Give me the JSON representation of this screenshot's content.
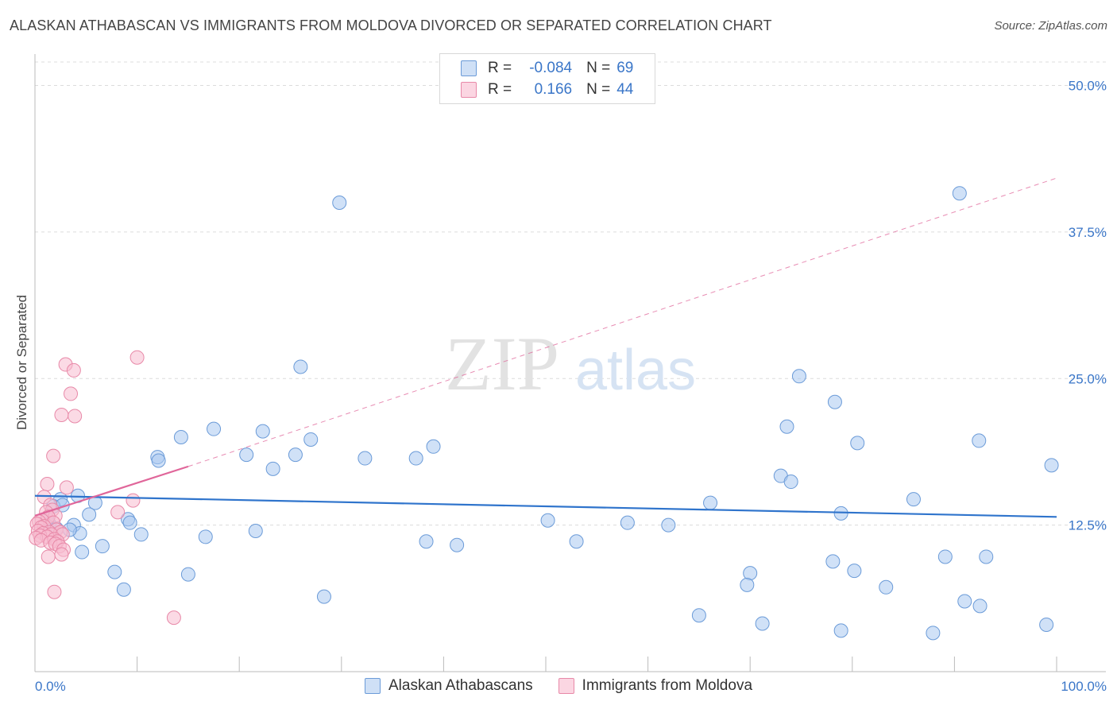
{
  "title": "ALASKAN ATHABASCAN VS IMMIGRANTS FROM MOLDOVA DIVORCED OR SEPARATED CORRELATION CHART",
  "source": "Source: ZipAtlas.com",
  "watermark": {
    "zip": "ZIP",
    "atlas": "atlas"
  },
  "legend": {
    "rows": [
      {
        "r_label": "R =",
        "r_value": "-0.084",
        "n_label": "N =",
        "n_value": "69",
        "color": "#a9c8f0",
        "border": "#6b9bd8"
      },
      {
        "r_label": "R =",
        "r_value": "0.166",
        "n_label": "N =",
        "n_value": "44",
        "color": "#f7bcd0",
        "border": "#e889a8"
      }
    ]
  },
  "bottom_legend": [
    {
      "label": "Alaskan Athabascans",
      "color": "#a9c8f0",
      "border": "#6b9bd8"
    },
    {
      "label": "Immigrants from Moldova",
      "color": "#f7bcd0",
      "border": "#e889a8"
    }
  ],
  "chart_data": {
    "type": "scatter",
    "title": "ALASKAN ATHABASCAN VS IMMIGRANTS FROM MOLDOVA DIVORCED OR SEPARATED CORRELATION CHART",
    "xlabel": "",
    "ylabel": "Divorced or Separated",
    "xlim": [
      0,
      100
    ],
    "ylim": [
      0,
      52
    ],
    "x_tick_labels": [
      "0.0%",
      "100.0%"
    ],
    "y_ticks": [
      12.5,
      25.0,
      37.5,
      50.0
    ],
    "y_tick_labels": [
      "12.5%",
      "25.0%",
      "37.5%",
      "50.0%"
    ],
    "grid": true,
    "series": [
      {
        "name": "Alaskan Athabascans",
        "color": "#a9c8f0",
        "stroke": "#6b9bd8",
        "points": [
          [
            29.8,
            40.0
          ],
          [
            90.5,
            40.8
          ],
          [
            26.0,
            26.0
          ],
          [
            74.8,
            25.2
          ],
          [
            78.3,
            23.0
          ],
          [
            17.5,
            20.7
          ],
          [
            22.3,
            20.5
          ],
          [
            73.6,
            20.9
          ],
          [
            14.3,
            20.0
          ],
          [
            27.0,
            19.8
          ],
          [
            80.5,
            19.5
          ],
          [
            92.4,
            19.7
          ],
          [
            39.0,
            19.2
          ],
          [
            12.0,
            18.3
          ],
          [
            12.1,
            18.0
          ],
          [
            20.7,
            18.5
          ],
          [
            25.5,
            18.5
          ],
          [
            32.3,
            18.2
          ],
          [
            37.3,
            18.2
          ],
          [
            23.3,
            17.3
          ],
          [
            99.5,
            17.6
          ],
          [
            73.0,
            16.7
          ],
          [
            74.0,
            16.2
          ],
          [
            4.2,
            15.0
          ],
          [
            2.5,
            14.7
          ],
          [
            5.9,
            14.4
          ],
          [
            1.8,
            14.1
          ],
          [
            2.7,
            14.2
          ],
          [
            66.1,
            14.4
          ],
          [
            86.0,
            14.7
          ],
          [
            78.9,
            13.5
          ],
          [
            5.3,
            13.4
          ],
          [
            9.1,
            13.0
          ],
          [
            1.4,
            12.6
          ],
          [
            9.3,
            12.7
          ],
          [
            3.8,
            12.5
          ],
          [
            50.2,
            12.9
          ],
          [
            58.0,
            12.7
          ],
          [
            62.0,
            12.5
          ],
          [
            4.4,
            11.8
          ],
          [
            3.4,
            12.1
          ],
          [
            10.4,
            11.7
          ],
          [
            16.7,
            11.5
          ],
          [
            21.6,
            12.0
          ],
          [
            38.3,
            11.1
          ],
          [
            41.3,
            10.8
          ],
          [
            53.0,
            11.1
          ],
          [
            6.6,
            10.7
          ],
          [
            4.6,
            10.2
          ],
          [
            78.1,
            9.4
          ],
          [
            89.1,
            9.8
          ],
          [
            93.1,
            9.8
          ],
          [
            7.8,
            8.5
          ],
          [
            15.0,
            8.3
          ],
          [
            70.0,
            8.4
          ],
          [
            80.2,
            8.6
          ],
          [
            69.7,
            7.4
          ],
          [
            83.3,
            7.2
          ],
          [
            8.7,
            7.0
          ],
          [
            28.3,
            6.4
          ],
          [
            91.0,
            6.0
          ],
          [
            92.5,
            5.6
          ],
          [
            65.0,
            4.8
          ],
          [
            71.2,
            4.1
          ],
          [
            78.9,
            3.5
          ],
          [
            87.9,
            3.3
          ],
          [
            99.0,
            4.0
          ],
          [
            1.2,
            13.0
          ],
          [
            2.1,
            12.2
          ]
        ]
      },
      {
        "name": "Immigrants from Moldova",
        "color": "#f7bcd0",
        "stroke": "#e889a8",
        "points": [
          [
            10.0,
            26.8
          ],
          [
            3.0,
            26.2
          ],
          [
            3.8,
            25.7
          ],
          [
            3.5,
            23.7
          ],
          [
            2.6,
            21.9
          ],
          [
            3.9,
            21.8
          ],
          [
            1.8,
            18.4
          ],
          [
            1.2,
            16.0
          ],
          [
            3.1,
            15.7
          ],
          [
            0.9,
            14.9
          ],
          [
            9.6,
            14.6
          ],
          [
            1.5,
            14.2
          ],
          [
            1.7,
            13.8
          ],
          [
            1.1,
            13.6
          ],
          [
            8.1,
            13.6
          ],
          [
            2.0,
            13.3
          ],
          [
            1.3,
            13.2
          ],
          [
            0.7,
            12.9
          ],
          [
            0.4,
            12.8
          ],
          [
            1.8,
            12.7
          ],
          [
            0.2,
            12.6
          ],
          [
            0.9,
            12.4
          ],
          [
            0.6,
            12.3
          ],
          [
            2.1,
            12.1
          ],
          [
            0.3,
            12.0
          ],
          [
            1.4,
            11.9
          ],
          [
            2.5,
            11.9
          ],
          [
            0.8,
            11.8
          ],
          [
            1.6,
            11.7
          ],
          [
            2.7,
            11.7
          ],
          [
            0.5,
            11.6
          ],
          [
            1.2,
            11.5
          ],
          [
            0.1,
            11.4
          ],
          [
            1.9,
            11.3
          ],
          [
            0.6,
            11.2
          ],
          [
            2.2,
            11.1
          ],
          [
            1.5,
            11.0
          ],
          [
            2.0,
            10.9
          ],
          [
            2.4,
            10.7
          ],
          [
            2.8,
            10.4
          ],
          [
            2.6,
            10.0
          ],
          [
            1.3,
            9.8
          ],
          [
            1.9,
            6.8
          ],
          [
            13.6,
            4.6
          ]
        ]
      }
    ],
    "trend_lines": [
      {
        "series": "Alaskan Athabascans",
        "x": [
          0,
          100
        ],
        "y": [
          15.0,
          13.2
        ],
        "style": "solid"
      },
      {
        "series": "Immigrants from Moldova",
        "x": [
          0,
          15
        ],
        "y": [
          13.3,
          17.5
        ],
        "style": "solid"
      },
      {
        "series": "Immigrants from Moldova",
        "x": [
          15,
          100
        ],
        "y": [
          17.5,
          42.1
        ],
        "style": "dashed"
      }
    ]
  }
}
